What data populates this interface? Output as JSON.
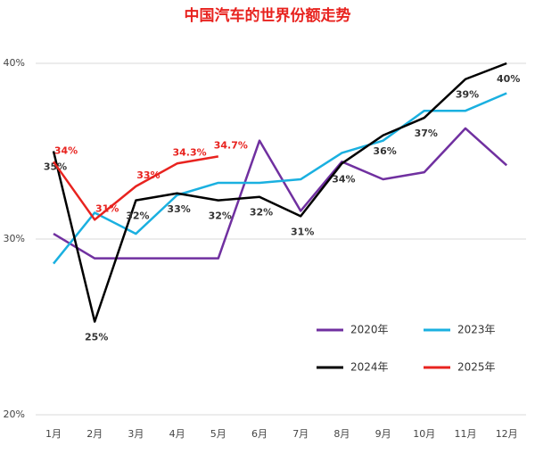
{
  "chart_data": {
    "type": "line",
    "title": "中国汽车的世界份额走势",
    "categories": [
      "1月",
      "2月",
      "3月",
      "4月",
      "5月",
      "6月",
      "7月",
      "8月",
      "9月",
      "10月",
      "11月",
      "12月"
    ],
    "ylim": [
      20,
      41
    ],
    "yticks": [
      {
        "value": 20,
        "label": "20%"
      },
      {
        "value": 30,
        "label": "30%"
      },
      {
        "value": 40,
        "label": "40%"
      }
    ],
    "grid": true,
    "series": [
      {
        "name": "2020年",
        "color": "#7030a0",
        "values": [
          30.3,
          28.9,
          28.9,
          28.9,
          28.9,
          35.6,
          31.6,
          34.4,
          33.4,
          33.8,
          36.3,
          34.2
        ]
      },
      {
        "name": "2023年",
        "color": "#1ab0e0",
        "values": [
          28.6,
          31.5,
          30.3,
          32.5,
          33.2,
          33.2,
          33.4,
          34.9,
          35.6,
          37.3,
          37.3,
          38.3
        ]
      },
      {
        "name": "2024年",
        "color": "#000000",
        "values": [
          35.0,
          25.3,
          32.2,
          32.6,
          32.2,
          32.4,
          31.3,
          34.3,
          35.9,
          36.9,
          39.1,
          40.0
        ],
        "value_labels": [
          "35%",
          "25%",
          "32%",
          "33%",
          "32%",
          "32%",
          "31%",
          "34%",
          "36%",
          "37%",
          "39%",
          "40%"
        ]
      },
      {
        "name": "2025年",
        "color": "#e8231f",
        "values": [
          34.4,
          31.1,
          33.0,
          34.3,
          34.7,
          null,
          null,
          null,
          null,
          null,
          null,
          null
        ],
        "value_labels": [
          "34%",
          "31%",
          "33%",
          "34.3%",
          "34.7%",
          null,
          null,
          null,
          null,
          null,
          null,
          null
        ]
      }
    ]
  }
}
